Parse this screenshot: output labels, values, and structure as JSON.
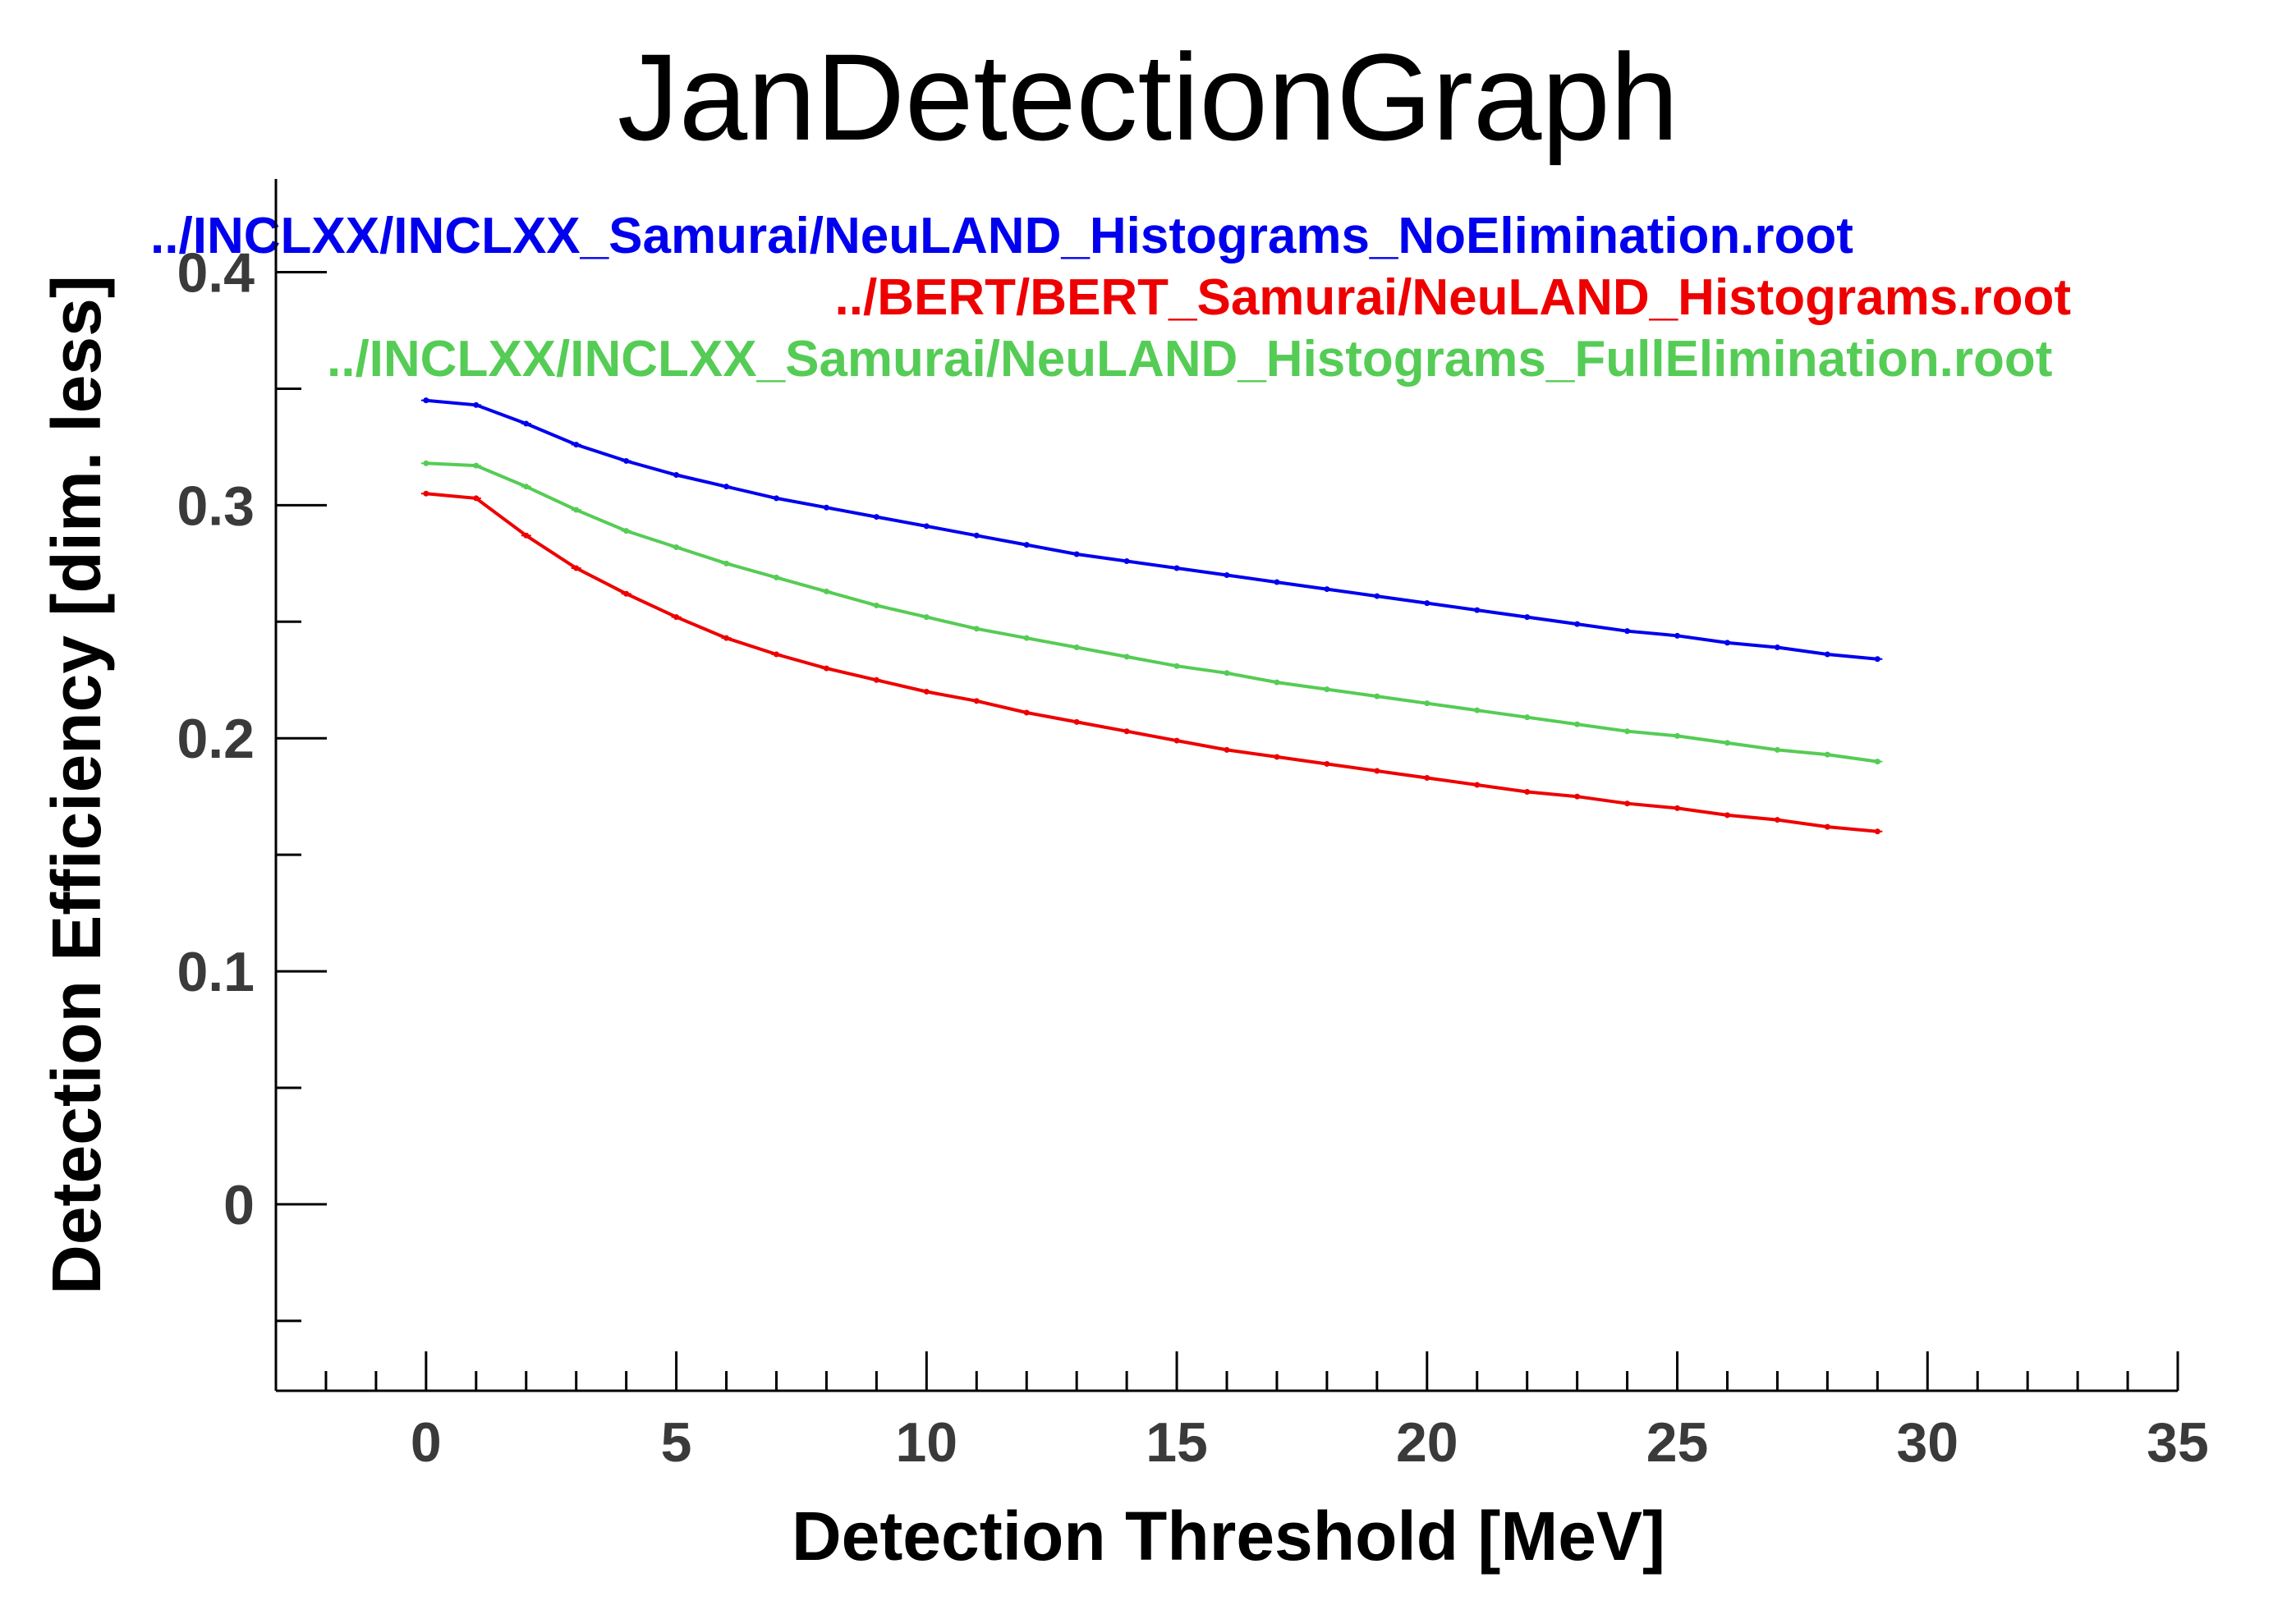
{
  "chart_data": {
    "type": "line",
    "title": "JanDetectionGraph",
    "xlabel": "Detection Threshold [MeV]",
    "ylabel": "Detection Efficiency [dim. less]",
    "xlim": [
      -3,
      35
    ],
    "ylim": [
      -0.08,
      0.44
    ],
    "xticks": [
      0,
      5,
      10,
      15,
      20,
      25,
      30,
      35
    ],
    "xtick_labels": [
      "0",
      "5",
      "10",
      "15",
      "20",
      "25",
      "30",
      "35"
    ],
    "yticks": [
      0,
      0.1,
      0.2,
      0.3,
      0.4
    ],
    "ytick_labels": [
      "0",
      "0.1",
      "0.2",
      "0.3",
      "0.4"
    ],
    "grid": false,
    "legend_position": "top",
    "x": [
      0,
      1,
      2,
      3,
      4,
      5,
      6,
      7,
      8,
      9,
      10,
      11,
      12,
      13,
      14,
      15,
      16,
      17,
      18,
      19,
      20,
      21,
      22,
      23,
      24,
      25,
      26,
      27,
      28,
      29
    ],
    "series": [
      {
        "name": "../INCLXX/INCLXX_Samurai/NeuLAND_Histograms_NoElimination.root",
        "color": "#0000ee",
        "values": [
          0.345,
          0.343,
          0.335,
          0.326,
          0.319,
          0.313,
          0.308,
          0.303,
          0.299,
          0.295,
          0.291,
          0.287,
          0.283,
          0.279,
          0.276,
          0.273,
          0.27,
          0.267,
          0.264,
          0.261,
          0.258,
          0.255,
          0.252,
          0.249,
          0.246,
          0.244,
          0.241,
          0.239,
          0.236,
          0.234
        ]
      },
      {
        "name": "../BERT/BERT_Samurai/NeuLAND_Histograms.root",
        "color": "#ee0000",
        "values": [
          0.305,
          0.303,
          0.287,
          0.273,
          0.262,
          0.252,
          0.243,
          0.236,
          0.23,
          0.225,
          0.22,
          0.216,
          0.211,
          0.207,
          0.203,
          0.199,
          0.195,
          0.192,
          0.189,
          0.186,
          0.183,
          0.18,
          0.177,
          0.175,
          0.172,
          0.17,
          0.167,
          0.165,
          0.162,
          0.16
        ]
      },
      {
        "name": "../INCLXX/INCLXX_Samurai/NeuLAND_Histograms_FullElimination.root",
        "color": "#55cc55",
        "values": [
          0.318,
          0.317,
          0.308,
          0.298,
          0.289,
          0.282,
          0.275,
          0.269,
          0.263,
          0.257,
          0.252,
          0.247,
          0.243,
          0.239,
          0.235,
          0.231,
          0.228,
          0.224,
          0.221,
          0.218,
          0.215,
          0.212,
          0.209,
          0.206,
          0.203,
          0.201,
          0.198,
          0.195,
          0.193,
          0.19
        ]
      }
    ]
  }
}
